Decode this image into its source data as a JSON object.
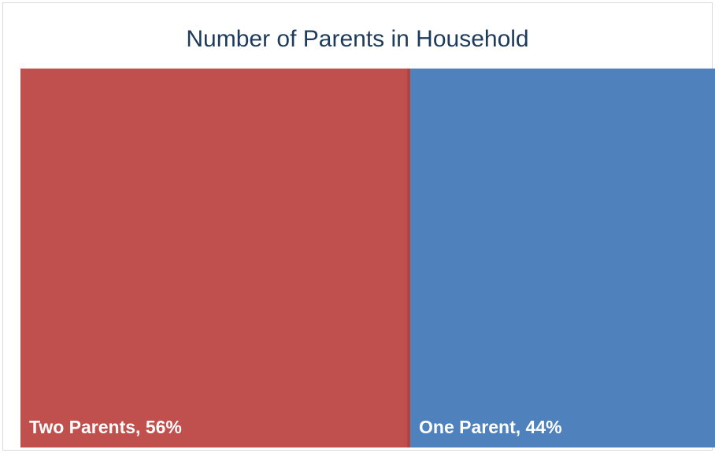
{
  "chart_data": {
    "type": "bar",
    "title": "Number of Parents in Household",
    "categories": [
      "Two Parents",
      "One Parent"
    ],
    "values": [
      56,
      44
    ],
    "unit": "%",
    "labels": [
      "Two Parents, 56%",
      "One Parent, 44%"
    ],
    "colors": [
      "#c0504d",
      "#4f81bd"
    ],
    "legend": "none",
    "grid": false
  }
}
